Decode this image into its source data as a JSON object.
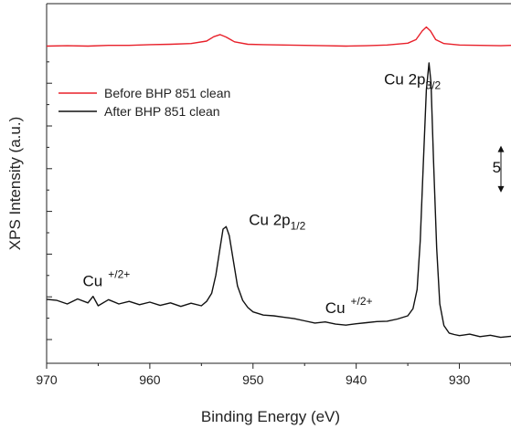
{
  "chart_data": {
    "type": "line",
    "xlabel": "Binding Energy (eV)",
    "ylabel": "XPS Intensity (a.u.)",
    "xlim": [
      970,
      925
    ],
    "x_reversed": true,
    "x_ticks": [
      970,
      960,
      950,
      940,
      930
    ],
    "ylim": [
      0,
      100
    ],
    "y_tick_labels_shown": false,
    "legend_position": "top-left",
    "series": [
      {
        "name": "Before BHP 851 clean",
        "color": "#e8202a",
        "baseline": 88,
        "points": [
          [
            970,
            88.2
          ],
          [
            968,
            88.3
          ],
          [
            966,
            88.2
          ],
          [
            964,
            88.4
          ],
          [
            962,
            88.4
          ],
          [
            960,
            88.6
          ],
          [
            958,
            88.7
          ],
          [
            956,
            88.9
          ],
          [
            954.5,
            89.6
          ],
          [
            953.8,
            90.8
          ],
          [
            953.2,
            91.4
          ],
          [
            952.6,
            90.7
          ],
          [
            951.8,
            89.4
          ],
          [
            950.5,
            88.7
          ],
          [
            949,
            88.6
          ],
          [
            947,
            88.5
          ],
          [
            945,
            88.4
          ],
          [
            943,
            88.3
          ],
          [
            941,
            88.2
          ],
          [
            939,
            88.3
          ],
          [
            937,
            88.5
          ],
          [
            935,
            89.0
          ],
          [
            934.2,
            90.0
          ],
          [
            933.6,
            92.4
          ],
          [
            933.2,
            93.5
          ],
          [
            932.8,
            92.4
          ],
          [
            932.3,
            90.0
          ],
          [
            931.5,
            88.9
          ],
          [
            930,
            88.5
          ],
          [
            928,
            88.4
          ],
          [
            926,
            88.3
          ],
          [
            925,
            88.4
          ]
        ]
      },
      {
        "name": "After BHP 851 clean",
        "color": "#111111",
        "points": [
          [
            970,
            17.8
          ],
          [
            969,
            17.5
          ],
          [
            968,
            16.5
          ],
          [
            967,
            17.9
          ],
          [
            966,
            16.8
          ],
          [
            965.5,
            18.6
          ],
          [
            965,
            16.0
          ],
          [
            964,
            17.7
          ],
          [
            963,
            16.5
          ],
          [
            962,
            17.2
          ],
          [
            961,
            16.3
          ],
          [
            960,
            17.0
          ],
          [
            959,
            16.1
          ],
          [
            958,
            16.8
          ],
          [
            957,
            15.8
          ],
          [
            956,
            16.7
          ],
          [
            955,
            16.0
          ],
          [
            954.5,
            17.2
          ],
          [
            954,
            19.5
          ],
          [
            953.6,
            24.5
          ],
          [
            953.2,
            32.0
          ],
          [
            952.9,
            37.3
          ],
          [
            952.6,
            38.0
          ],
          [
            952.3,
            35.5
          ],
          [
            951.9,
            28.5
          ],
          [
            951.5,
            21.5
          ],
          [
            951,
            17.5
          ],
          [
            950.5,
            15.5
          ],
          [
            950,
            14.3
          ],
          [
            949,
            13.4
          ],
          [
            948,
            13.2
          ],
          [
            947,
            12.8
          ],
          [
            946,
            12.4
          ],
          [
            945,
            11.8
          ],
          [
            944,
            11.2
          ],
          [
            943,
            11.5
          ],
          [
            942,
            10.9
          ],
          [
            941,
            10.6
          ],
          [
            940,
            11.0
          ],
          [
            939,
            11.3
          ],
          [
            938,
            11.6
          ],
          [
            937,
            11.7
          ],
          [
            936,
            12.3
          ],
          [
            935,
            13.2
          ],
          [
            934.5,
            15.2
          ],
          [
            934.1,
            20.5
          ],
          [
            933.8,
            34.0
          ],
          [
            933.5,
            55.0
          ],
          [
            933.2,
            76.0
          ],
          [
            932.95,
            83.5
          ],
          [
            932.75,
            78.0
          ],
          [
            932.5,
            56.0
          ],
          [
            932.2,
            32.0
          ],
          [
            931.9,
            16.5
          ],
          [
            931.5,
            10.5
          ],
          [
            931,
            8.4
          ],
          [
            930.5,
            8.0
          ],
          [
            930,
            7.7
          ],
          [
            929,
            8.1
          ],
          [
            928,
            7.4
          ],
          [
            927,
            7.8
          ],
          [
            926,
            7.2
          ],
          [
            925,
            7.5
          ]
        ]
      }
    ],
    "annotations": [
      {
        "base": "Cu",
        "sup": "+/2+",
        "x": 966.5,
        "y": 21.5
      },
      {
        "base": "Cu 2p",
        "sub": "1/2",
        "x": 950.4,
        "y": 38.5
      },
      {
        "base": "Cu",
        "sup": "+/2+",
        "x": 943.0,
        "y": 14.0
      },
      {
        "base": "Cu 2p",
        "sub": "3/2",
        "x": 937.3,
        "y": 77.5
      },
      {
        "base": "5",
        "x": 926.8,
        "y": 53.0
      }
    ],
    "scale_bar": {
      "label": "5",
      "from": 47.5,
      "to": 60.5
    }
  }
}
